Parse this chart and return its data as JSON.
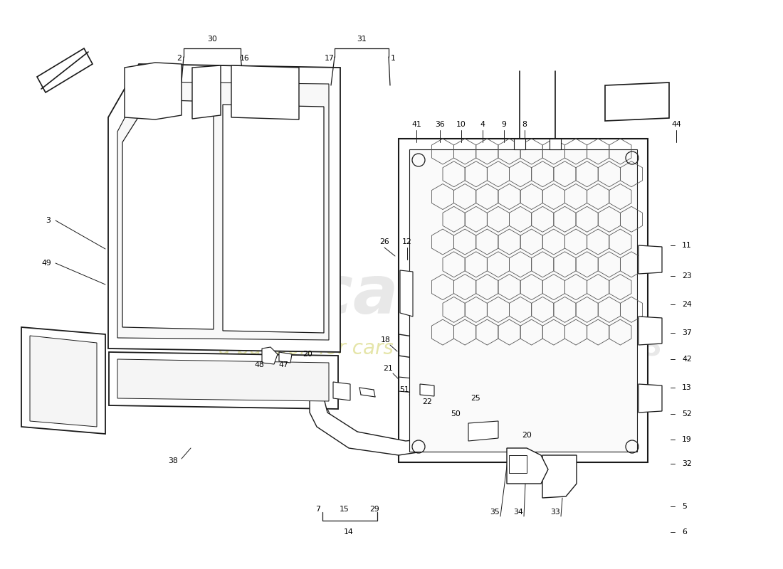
{
  "background_color": "#ffffff",
  "fig_width": 11.0,
  "fig_height": 8.0,
  "label_fontsize": 7.8,
  "line_color": "#1a1a1a",
  "watermark_eurocars_color": "#cccccc",
  "watermark_passion_color": "#d4d470",
  "watermark_num_color": "#cccccc"
}
